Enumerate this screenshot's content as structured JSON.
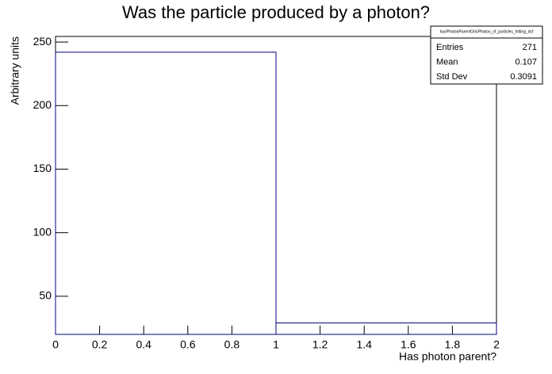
{
  "chart_data": {
    "type": "histogram",
    "title": "Was the particle produced by a photon?",
    "x_label": "Has photon parent?",
    "y_label": "Arbitrary units",
    "bins": [
      0,
      1,
      2
    ],
    "values": [
      242,
      29
    ],
    "color": "#000080",
    "xlim": [
      0,
      2
    ],
    "xticks": [
      0,
      0.2,
      0.4,
      0.6,
      0.8,
      1,
      1.2,
      1.4,
      1.6,
      1.8,
      2
    ],
    "ylim": [
      20,
      254.4
    ],
    "yticks": [
      50,
      100,
      150,
      200,
      250
    ],
    "stats": {
      "title": "hasPhotonParentOrIsPhoton_of_particles_hitting_dcf",
      "rows": [
        {
          "label": "Entries",
          "value": 271
        },
        {
          "label": "Mean",
          "value": 0.107
        },
        {
          "label": "Std Dev",
          "value": 0.3091
        }
      ]
    }
  }
}
